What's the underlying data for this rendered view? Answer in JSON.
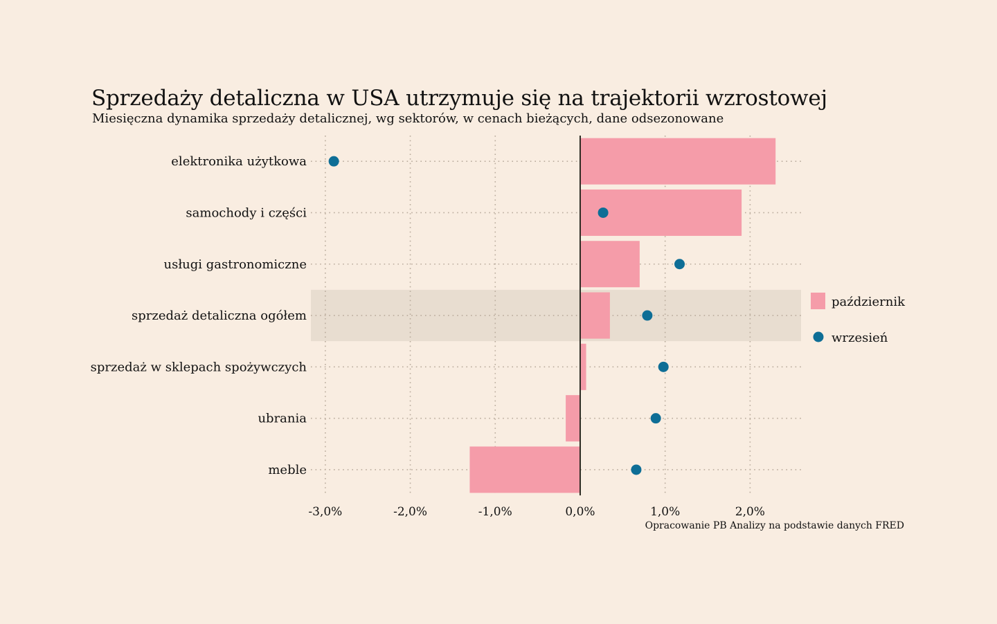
{
  "chart_data": {
    "type": "bar",
    "orientation": "horizontal",
    "title": "Sprzedaży detaliczna w USA utrzymuje się na trajektorii wzrostowej",
    "subtitle": "Miesięczna dynamika sprzedaży detalicznej, wg sektorów, w cenach bieżących, dane odsezonowane",
    "caption": "Opracowanie PB Analizy na podstawie danych FRED",
    "categories": [
      "elektronika użytkowa",
      "samochody i części",
      "usługi gastronomiczne",
      "sprzedaż detaliczna ogółem",
      "sprzedaż w sklepach spożywczych",
      "ubrania",
      "meble"
    ],
    "highlighted_category": "sprzedaż detaliczna ogółem",
    "series": [
      {
        "name": "październik",
        "mark": "bar",
        "color": "#f59ca9",
        "values": [
          2.3,
          1.9,
          0.7,
          0.35,
          0.07,
          -0.17,
          -1.3
        ]
      },
      {
        "name": "wrzesień",
        "mark": "point",
        "color": "#0e6e96",
        "values": [
          -2.9,
          0.27,
          1.17,
          0.79,
          0.98,
          0.89,
          0.66
        ]
      }
    ],
    "x_ticks": [
      -3,
      -2,
      -1,
      0,
      1,
      2
    ],
    "x_tick_labels": [
      "-3,0%",
      "-2,0%",
      "-1,0%",
      "0,0%",
      "1,0%",
      "2,0%"
    ],
    "xlim": [
      -3.17,
      2.6
    ],
    "grid": true,
    "legend_position": "right"
  }
}
